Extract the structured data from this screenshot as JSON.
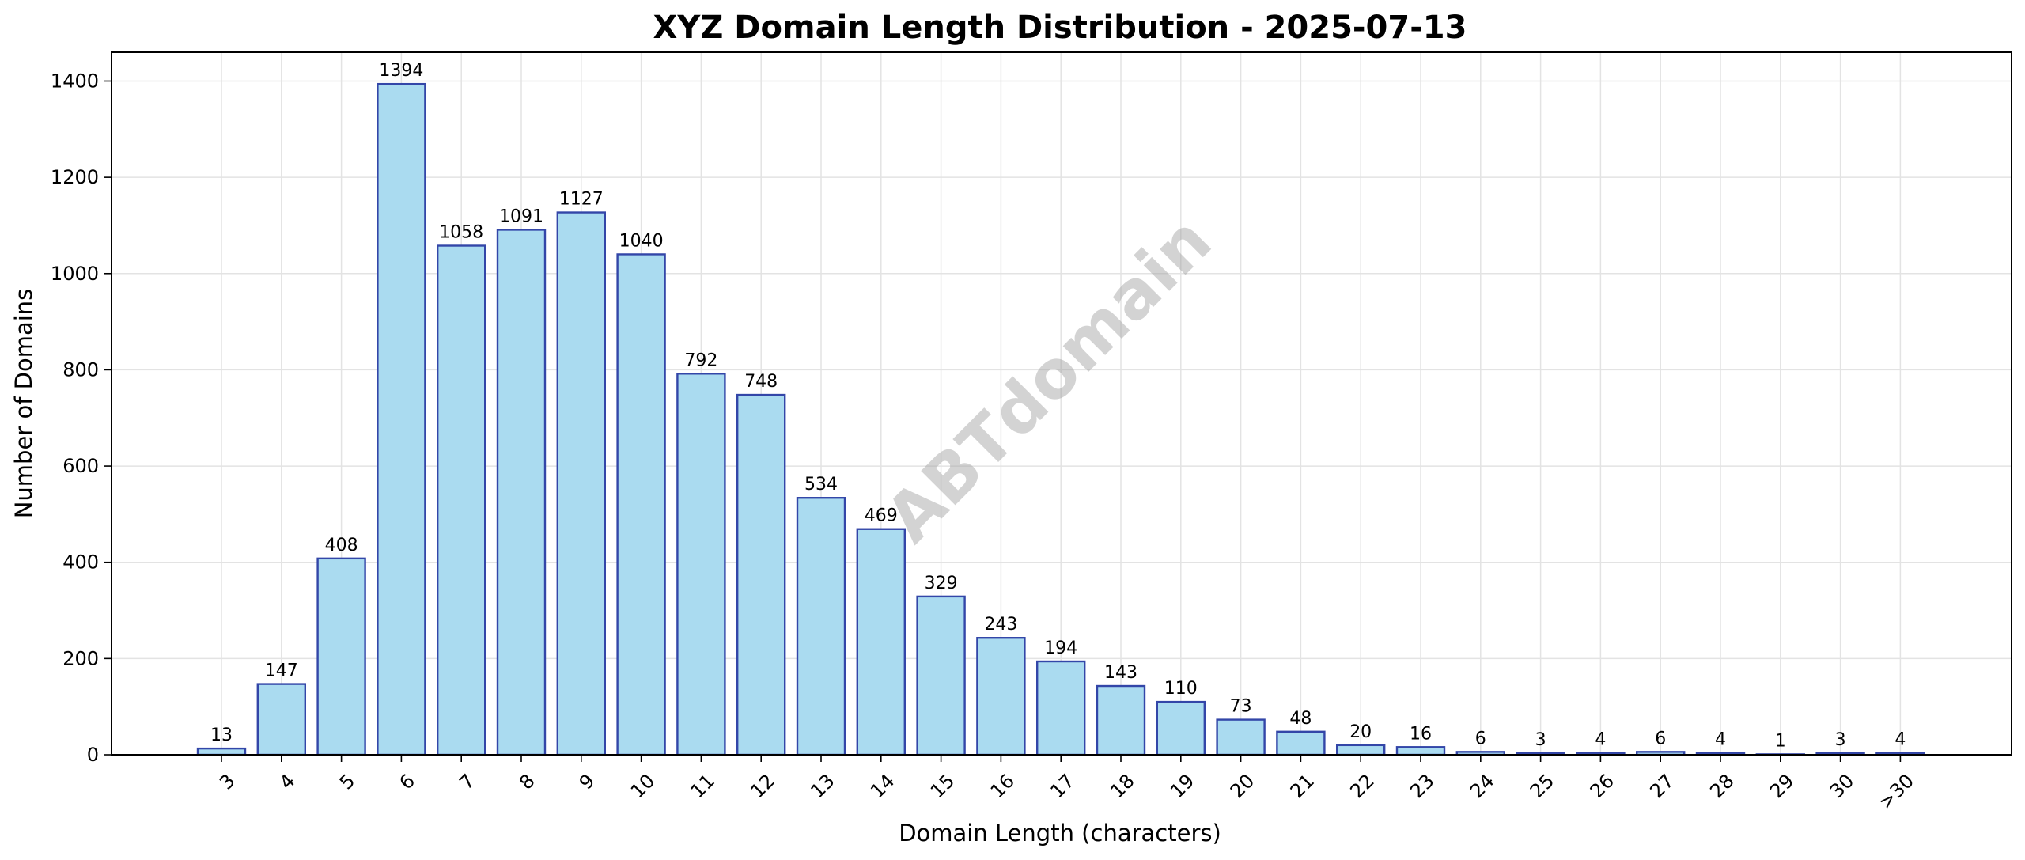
{
  "chart_data": {
    "type": "bar",
    "title": "XYZ Domain Length Distribution - 2025-07-13",
    "xlabel": "Domain Length (characters)",
    "ylabel": "Number of Domains",
    "categories": [
      "3",
      "4",
      "5",
      "6",
      "7",
      "8",
      "9",
      "10",
      "11",
      "12",
      "13",
      "14",
      "15",
      "16",
      "17",
      "18",
      "19",
      "20",
      "21",
      "22",
      "23",
      "24",
      "25",
      "26",
      "27",
      "28",
      "29",
      "30",
      ">30"
    ],
    "values": [
      13,
      147,
      408,
      1394,
      1058,
      1091,
      1127,
      1040,
      792,
      748,
      534,
      469,
      329,
      243,
      194,
      143,
      110,
      73,
      48,
      20,
      16,
      6,
      3,
      4,
      6,
      4,
      1,
      3,
      4
    ],
    "ylim": [
      0,
      1460
    ],
    "yticks": [
      0,
      200,
      400,
      600,
      800,
      1000,
      1200,
      1400
    ],
    "grid": true,
    "bar_color": "#aadbf0",
    "bar_edge_color": "#3346a8",
    "watermark": "ABTdomain"
  }
}
